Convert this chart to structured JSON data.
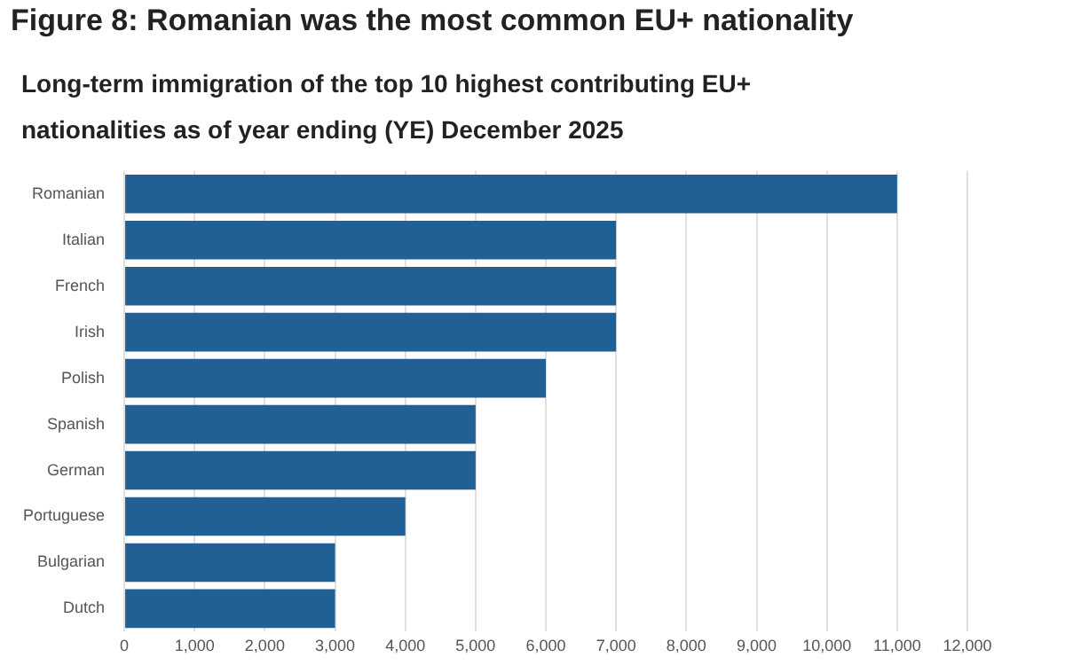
{
  "chart_data": {
    "type": "bar",
    "orientation": "horizontal",
    "title": "Figure 8: Romanian was the most common EU+ nationality",
    "subtitle": "Long-term immigration of the top 10 highest contributing EU+ nationalities as of year ending (YE) December 2025",
    "categories": [
      "Romanian",
      "Italian",
      "French",
      "Irish",
      "Polish",
      "Spanish",
      "German",
      "Portuguese",
      "Bulgarian",
      "Dutch"
    ],
    "values": [
      11000,
      7000,
      7000,
      7000,
      6000,
      5000,
      5000,
      4000,
      3000,
      3000
    ],
    "color": "#206095",
    "xlim": [
      0,
      12000
    ],
    "xticks": [
      0,
      {
        "value": 1000,
        "label": "1,000"
      },
      {
        "value": 2000,
        "label": "2,000"
      },
      {
        "value": 3000,
        "label": "3,000"
      },
      {
        "value": 4000,
        "label": "4,000"
      },
      {
        "value": 5000,
        "label": "5,000"
      },
      {
        "value": 6000,
        "label": "6,000"
      },
      {
        "value": 7000,
        "label": "7,000"
      },
      {
        "value": 8000,
        "label": "8,000"
      },
      {
        "value": 9000,
        "label": "9,000"
      },
      {
        "value": 10000,
        "label": "10,000"
      },
      {
        "value": 11000,
        "label": "11,000"
      },
      {
        "value": 12000,
        "label": "12,000"
      }
    ],
    "grid": "x",
    "legend": false
  }
}
